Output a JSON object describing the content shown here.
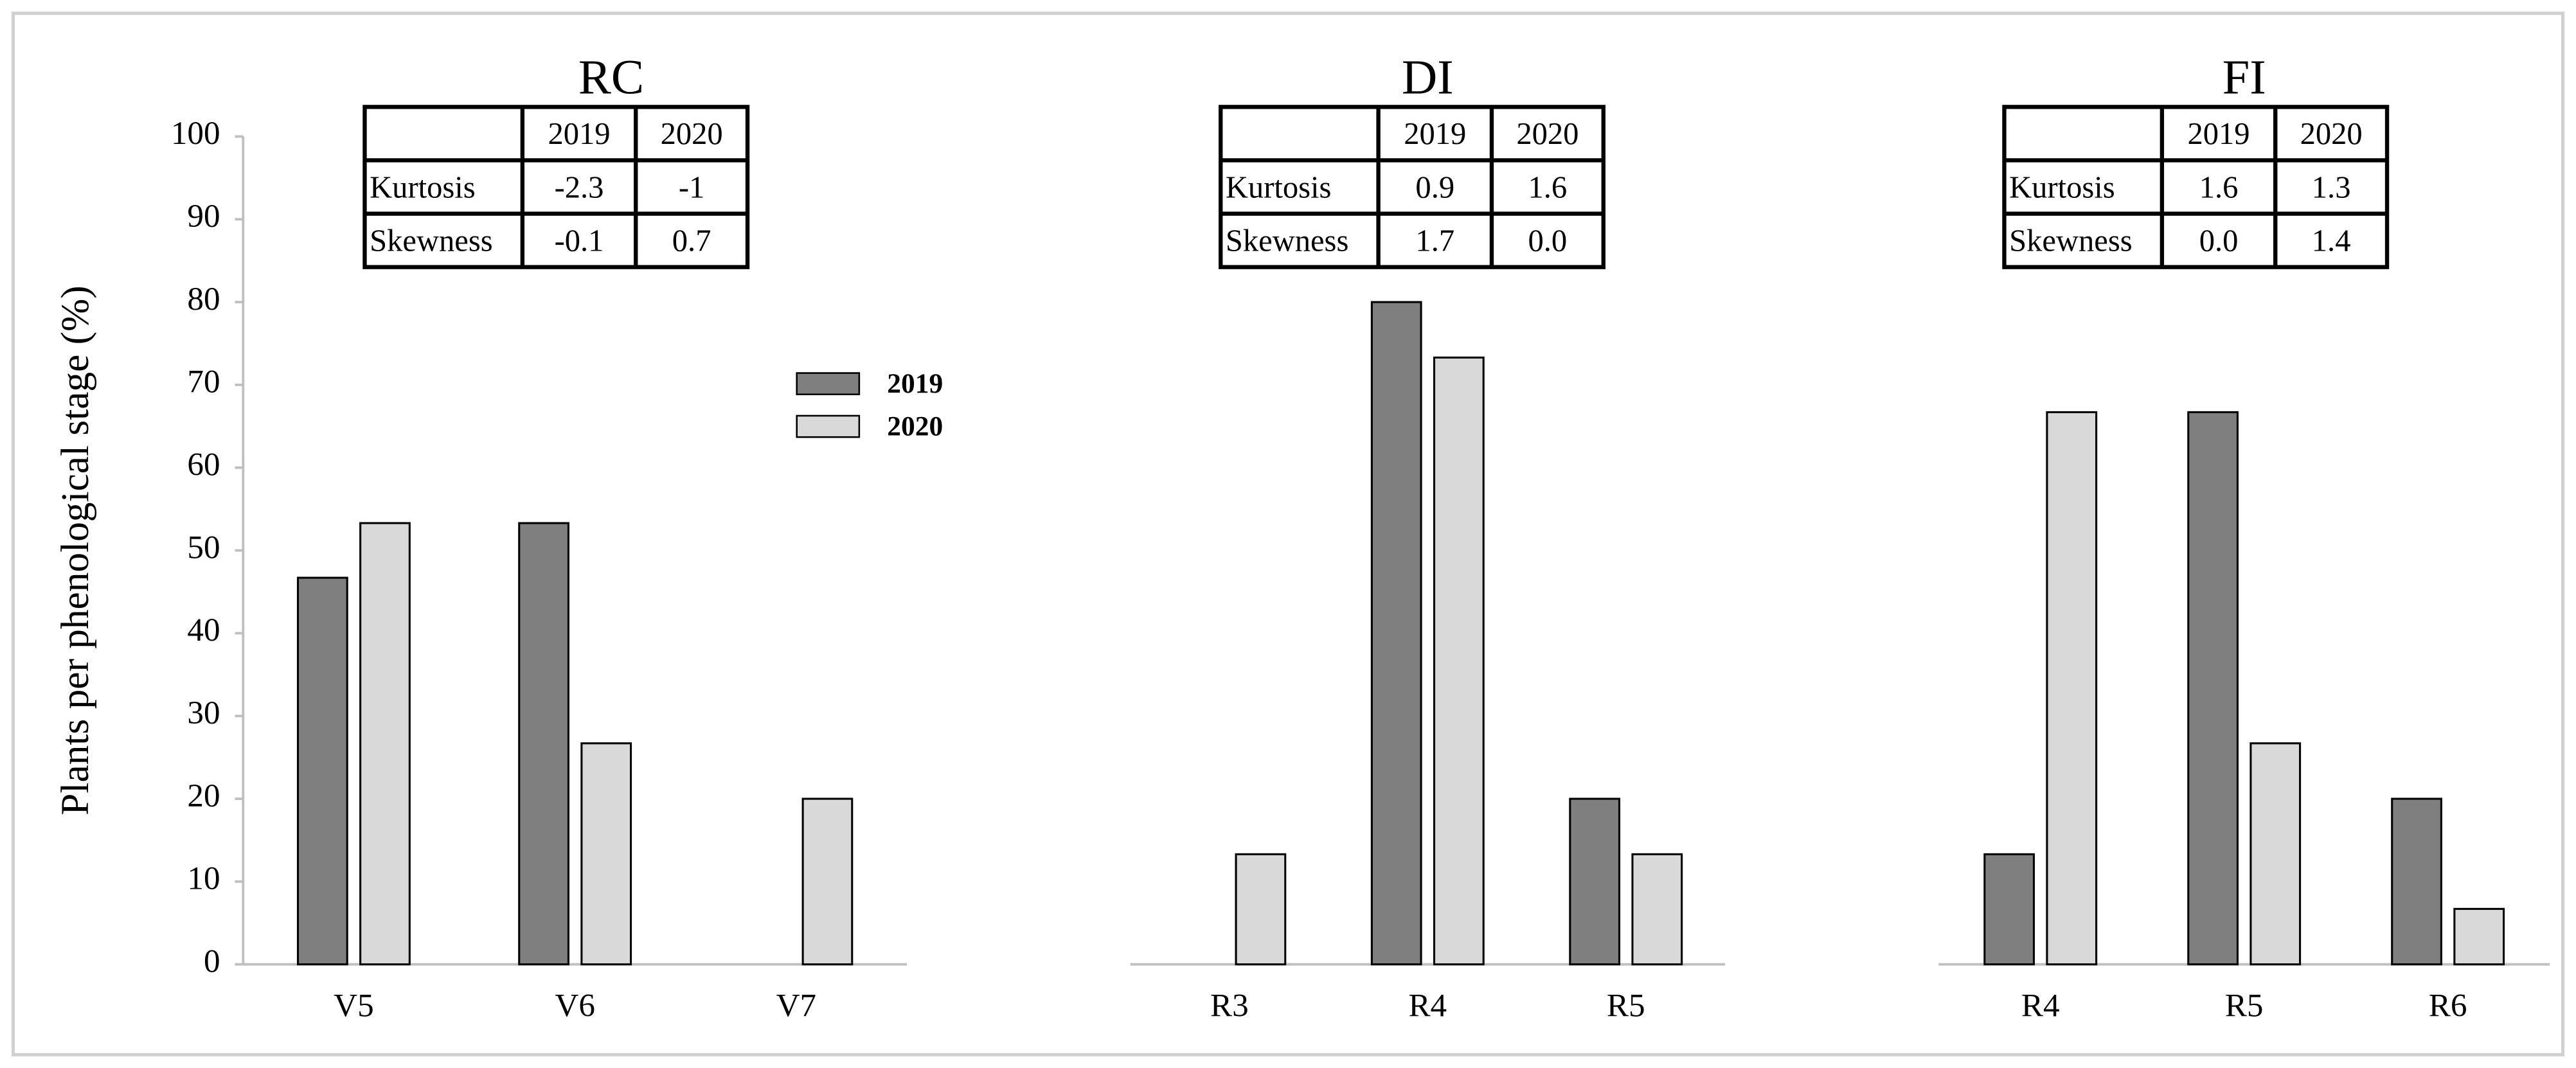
{
  "chart_data": [
    {
      "type": "bar",
      "title": "RC",
      "y_label": "Plants per phenological  stage (%)",
      "categories": [
        "V5",
        "V6",
        "V7"
      ],
      "series": [
        {
          "name": "2019",
          "color": "#7f7f7f",
          "values": [
            46.7,
            53.3,
            0
          ]
        },
        {
          "name": "2020",
          "color": "#d9d9d9",
          "values": [
            53.3,
            26.7,
            20
          ]
        }
      ],
      "ylim": [
        0,
        100
      ],
      "yticks": [
        0,
        10,
        20,
        30,
        40,
        50,
        60,
        70,
        80,
        90,
        100
      ],
      "legend": "upper right",
      "table": {
        "columns": [
          "2019",
          "2020"
        ],
        "rows": [
          {
            "label": "Kurtosis",
            "cells": [
              "-2.3",
              "-1"
            ]
          },
          {
            "label": "Skewness",
            "cells": [
              "-0.1",
              "0.7"
            ]
          }
        ]
      }
    },
    {
      "type": "bar",
      "title": "DI",
      "categories": [
        "R3",
        "R4",
        "R5"
      ],
      "series": [
        {
          "color": "#7f7f7f",
          "values": [
            0,
            80,
            20
          ]
        },
        {
          "color": "#d9d9d9",
          "values": [
            13.3,
            73.3,
            13.3
          ]
        }
      ],
      "ylim": [
        0,
        100
      ],
      "table": {
        "columns": [
          "2019",
          "2020"
        ],
        "rows": [
          {
            "label": "Kurtosis",
            "cells": [
              "0.9",
              "1.6"
            ]
          },
          {
            "label": "Skewness",
            "cells": [
              "1.7",
              "0.0"
            ]
          }
        ]
      }
    },
    {
      "type": "bar",
      "title": "FI",
      "categories": [
        "R4",
        "R5",
        "R6"
      ],
      "series": [
        {
          "color": "#7f7f7f",
          "values": [
            13.3,
            66.7,
            20
          ]
        },
        {
          "color": "#d9d9d9",
          "values": [
            66.7,
            26.7,
            6.7
          ]
        }
      ],
      "ylim": [
        0,
        100
      ],
      "table": {
        "columns": [
          "2019",
          "2020"
        ],
        "rows": [
          {
            "label": "Kurtosis",
            "cells": [
              "1.6",
              "1.3"
            ]
          },
          {
            "label": "Skewness",
            "cells": [
              "0.0",
              "1.4"
            ]
          }
        ]
      }
    }
  ]
}
